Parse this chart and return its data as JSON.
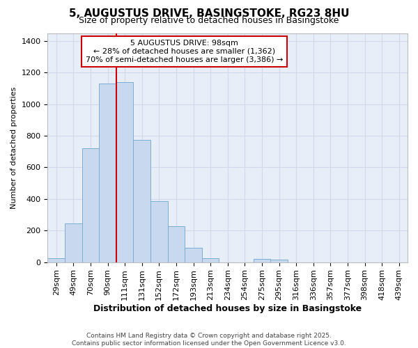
{
  "title_line1": "5, AUGUSTUS DRIVE, BASINGSTOKE, RG23 8HU",
  "title_line2": "Size of property relative to detached houses in Basingstoke",
  "xlabel": "Distribution of detached houses by size in Basingstoke",
  "ylabel": "Number of detached properties",
  "categories": [
    "29sqm",
    "49sqm",
    "70sqm",
    "90sqm",
    "111sqm",
    "131sqm",
    "152sqm",
    "172sqm",
    "193sqm",
    "213sqm",
    "234sqm",
    "254sqm",
    "275sqm",
    "295sqm",
    "316sqm",
    "336sqm",
    "357sqm",
    "377sqm",
    "398sqm",
    "418sqm",
    "439sqm"
  ],
  "values": [
    25,
    245,
    720,
    1130,
    1140,
    775,
    385,
    230,
    90,
    25,
    0,
    0,
    20,
    15,
    0,
    0,
    0,
    0,
    0,
    0,
    0
  ],
  "bar_color": "#c8d8ef",
  "bar_edge_color": "#7aaed4",
  "red_line_x": 3.5,
  "annotation_title": "5 AUGUSTUS DRIVE: 98sqm",
  "annotation_line2": "← 28% of detached houses are smaller (1,362)",
  "annotation_line3": "70% of semi-detached houses are larger (3,386) →",
  "annotation_box_facecolor": "#ffffff",
  "annotation_box_edgecolor": "#cc0000",
  "ylim": [
    0,
    1450
  ],
  "yticks": [
    0,
    200,
    400,
    600,
    800,
    1000,
    1200,
    1400
  ],
  "grid_color": "#d0daea",
  "background_color": "#ffffff",
  "plot_bg_color": "#e8eef8",
  "footer_line1": "Contains HM Land Registry data © Crown copyright and database right 2025.",
  "footer_line2": "Contains public sector information licensed under the Open Government Licence v3.0.",
  "title_fontsize": 11,
  "subtitle_fontsize": 9,
  "tick_fontsize": 8,
  "ylabel_fontsize": 8,
  "xlabel_fontsize": 9
}
